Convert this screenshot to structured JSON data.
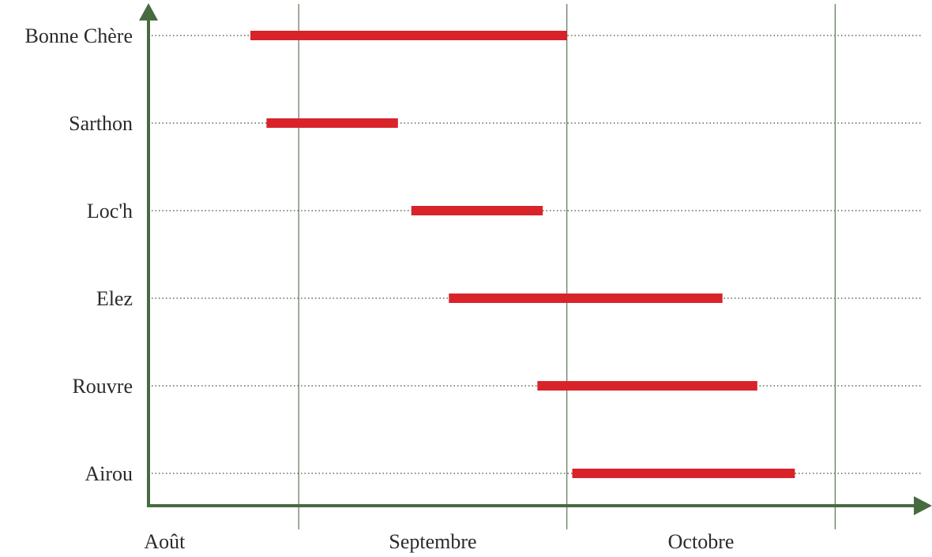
{
  "chart_data": {
    "type": "gantt",
    "title": "",
    "xlabel": "",
    "ylabel": "",
    "x_ticks": [
      "Août",
      "Septembre",
      "Octobre"
    ],
    "x_tick_positions": [
      0.5,
      1.5,
      2.5
    ],
    "x_separators": [
      1,
      2,
      3
    ],
    "xlim": [
      0.44,
      3.32
    ],
    "categories": [
      "Bonne Chère",
      "Sarthon",
      "Loc'h",
      "Elez",
      "Rouvre",
      "Airou"
    ],
    "bars": [
      {
        "category": "Bonne Chère",
        "start": 0.82,
        "end": 2.0
      },
      {
        "category": "Sarthon",
        "start": 0.88,
        "end": 1.37
      },
      {
        "category": "Loc'h",
        "start": 1.42,
        "end": 1.91
      },
      {
        "category": "Elez",
        "start": 1.56,
        "end": 2.58
      },
      {
        "category": "Rouvre",
        "start": 1.89,
        "end": 2.71
      },
      {
        "category": "Airou",
        "start": 2.02,
        "end": 2.85
      }
    ],
    "grid": "dotted-horizontal",
    "bar_color": "#d9232a",
    "axis_color": "#476b3f"
  }
}
